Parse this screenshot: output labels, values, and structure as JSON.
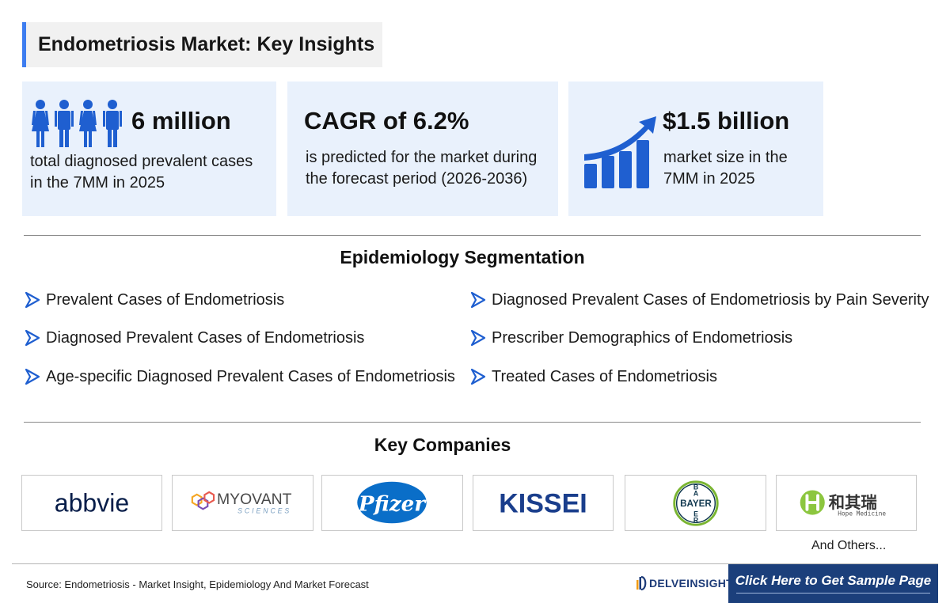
{
  "header": {
    "title": "Endometriosis Market: Key Insights"
  },
  "cards": [
    {
      "value": "6 million",
      "description_lines": [
        "total diagnosed prevalent cases",
        "in the 7MM in 2025"
      ],
      "icon": "people-icon"
    },
    {
      "value": "CAGR of 6.2%",
      "description_lines": [
        "is predicted for the market during",
        "the forecast period (2026-2036)"
      ]
    },
    {
      "value": "$1.5 billion",
      "description_lines": [
        "market size in the",
        "7MM in 2025"
      ],
      "icon": "growth-chart-icon"
    }
  ],
  "epidemiology": {
    "title": "Epidemiology Segmentation",
    "items": [
      "Prevalent Cases of Endometriosis",
      "Diagnosed Prevalent Cases of Endometriosis",
      "Age-specific Diagnosed Prevalent Cases of Endometriosis",
      "Diagnosed Prevalent Cases of Endometriosis by Pain Severity",
      "Prescriber Demographics of Endometriosis",
      "Treated Cases of Endometriosis"
    ]
  },
  "companies": {
    "title": "Key Companies",
    "logos": [
      {
        "name": "abbvie"
      },
      {
        "name": "MYOVANT",
        "sub": "SCIENCES"
      },
      {
        "name": "Pfizer"
      },
      {
        "name": "KISSEI"
      },
      {
        "name": "BAYER"
      },
      {
        "name": "和其瑞",
        "sub": "Hope Medicine"
      }
    ],
    "others": "And Others..."
  },
  "footer": {
    "source": "Source: Endometriosis - Market Insight, Epidemiology And Market Forecast",
    "brand": "DELVEINSIGHT",
    "cta": "Click Here to Get Sample Page"
  },
  "colors": {
    "accent": "#3d7df0",
    "card_bg": "#e9f1fc",
    "icon_blue": "#1f5fd0",
    "cta_bg": "#1b3f7b"
  }
}
